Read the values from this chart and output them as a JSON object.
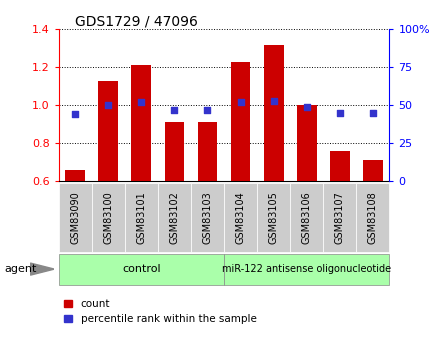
{
  "title": "GDS1729 / 47096",
  "samples": [
    "GSM83090",
    "GSM83100",
    "GSM83101",
    "GSM83102",
    "GSM83103",
    "GSM83104",
    "GSM83105",
    "GSM83106",
    "GSM83107",
    "GSM83108"
  ],
  "counts": [
    0.66,
    1.13,
    1.21,
    0.91,
    0.91,
    1.23,
    1.32,
    1.0,
    0.76,
    0.71
  ],
  "percentile_ranks": [
    44,
    50,
    52,
    47,
    47,
    52,
    53,
    49,
    45,
    45
  ],
  "ylim_left": [
    0.6,
    1.4
  ],
  "ylim_right": [
    0,
    100
  ],
  "yticks_left": [
    0.6,
    0.8,
    1.0,
    1.2,
    1.4
  ],
  "yticks_right": [
    0,
    25,
    50,
    75,
    100
  ],
  "ytick_labels_right": [
    "0",
    "25",
    "50",
    "75",
    "100%"
  ],
  "bar_color": "#cc0000",
  "dot_color": "#3333cc",
  "control_label": "control",
  "treatment_label": "miR-122 antisense oligonucleotide",
  "agent_label": "agent",
  "legend_count_label": "count",
  "legend_pct_label": "percentile rank within the sample",
  "group_bg_color": "#aaffaa",
  "tick_label_bg": "#cccccc",
  "grid_color": "#000000",
  "fig_bg": "#ffffff",
  "n_control": 5,
  "n_treatment": 5
}
